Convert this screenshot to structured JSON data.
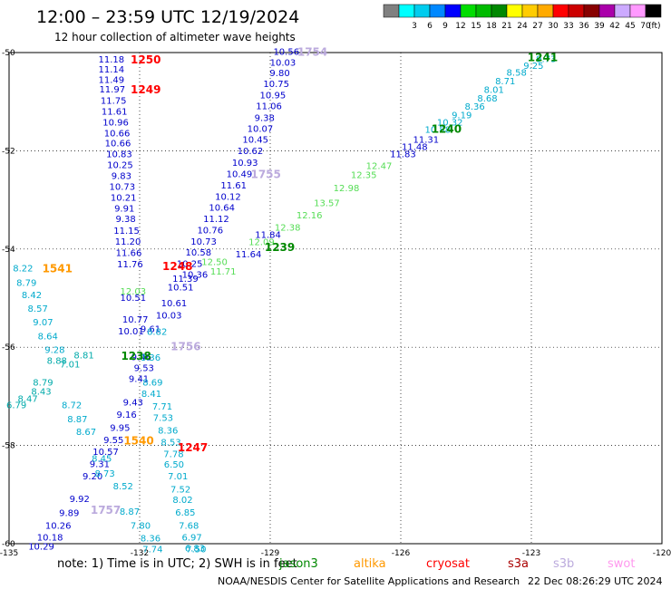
{
  "header": {
    "title": "12:00 – 23:59 UTC 12/19/2024",
    "subtitle": "12 hour collection of altimeter wave heights"
  },
  "colorbar": {
    "unit": "(ft)",
    "bins": [
      {
        "label": "",
        "color": "#808080"
      },
      {
        "label": "3",
        "color": "#00ffff"
      },
      {
        "label": "6",
        "color": "#00ccee"
      },
      {
        "label": "9",
        "color": "#0088ff"
      },
      {
        "label": "12",
        "color": "#0000ff"
      },
      {
        "label": "15",
        "color": "#00dd00"
      },
      {
        "label": "18",
        "color": "#00bb00"
      },
      {
        "label": "21",
        "color": "#008800"
      },
      {
        "label": "24",
        "color": "#ffff00"
      },
      {
        "label": "27",
        "color": "#ffcc00"
      },
      {
        "label": "30",
        "color": "#ffaa00"
      },
      {
        "label": "33",
        "color": "#ff0000"
      },
      {
        "label": "36",
        "color": "#cc0000"
      },
      {
        "label": "39",
        "color": "#880000"
      },
      {
        "label": "42",
        "color": "#aa00aa"
      },
      {
        "label": "45",
        "color": "#ccaaff"
      },
      {
        "label": "70",
        "color": "#ff99ff"
      },
      {
        "label": "",
        "color": "#000000"
      }
    ]
  },
  "footer": {
    "note": "note:  1) Time is in UTC; 2) SWH is in feet",
    "satellites": [
      {
        "name": "jason3",
        "color": "#008800"
      },
      {
        "name": "altika",
        "color": "#ff9900"
      },
      {
        "name": "cryosat",
        "color": "#ff0000"
      },
      {
        "name": "s3a",
        "color": "#aa0000"
      },
      {
        "name": "s3b",
        "color": "#bbaadd"
      },
      {
        "name": "swot",
        "color": "#ff99ee"
      }
    ],
    "credit": "NOAA/NESDIS Center for Satellite Applications and Research",
    "timestamp": "22 Dec 08:26:29 UTC 2024"
  },
  "chart_data": {
    "type": "scatter",
    "x_ticks": [
      "-135",
      "-132",
      "-129",
      "-126",
      "-123",
      "-120"
    ],
    "y_ticks": [
      "-50",
      "-52",
      "-54",
      "-56",
      "-58",
      "-60"
    ],
    "xlim": [
      -135,
      -120
    ],
    "ylim": [
      -60,
      -50
    ],
    "grid": true,
    "colors": {
      "dark": "#0000cc",
      "cyan": "#00aacc",
      "green": "#55dd55",
      "teal": "#00aaaa"
    },
    "time_labels": [
      {
        "text": "1250",
        "lon": -131.86,
        "lat": -50.13,
        "color": "#ff0000"
      },
      {
        "text": "1249",
        "lon": -131.86,
        "lat": -50.74,
        "color": "#ff0000"
      },
      {
        "text": "1754",
        "lon": -128.03,
        "lat": -49.97,
        "color": "#bbaadd"
      },
      {
        "text": "1241",
        "lon": -122.74,
        "lat": -50.08,
        "color": "#008800"
      },
      {
        "text": "1240",
        "lon": -124.95,
        "lat": -51.54,
        "color": "#008800"
      },
      {
        "text": "1755",
        "lon": -129.1,
        "lat": -52.46,
        "color": "#bbaadd"
      },
      {
        "text": "1239",
        "lon": -128.78,
        "lat": -53.95,
        "color": "#008800"
      },
      {
        "text": "1248",
        "lon": -131.13,
        "lat": -54.34,
        "color": "#ff0000"
      },
      {
        "text": "1541",
        "lon": -133.89,
        "lat": -54.38,
        "color": "#ff9900"
      },
      {
        "text": "1756",
        "lon": -130.94,
        "lat": -55.97,
        "color": "#bbaadd"
      },
      {
        "text": "1238",
        "lon": -132.08,
        "lat": -56.16,
        "color": "#008800"
      },
      {
        "text": "1540",
        "lon": -132.02,
        "lat": -57.89,
        "color": "#ff9900"
      },
      {
        "text": "1247",
        "lon": -130.78,
        "lat": -58.03,
        "color": "#ff0000"
      },
      {
        "text": "1757",
        "lon": -132.78,
        "lat": -59.3,
        "color": "#bbaadd"
      }
    ],
    "tracks": [
      {
        "name": "track-1250-1247",
        "color": "dark",
        "points": [
          {
            "v": "11.18",
            "lon": -132.65,
            "lat": -50.13
          },
          {
            "v": "11.14",
            "lon": -132.65,
            "lat": -50.33
          },
          {
            "v": "11.49",
            "lon": -132.65,
            "lat": -50.54
          },
          {
            "v": "11.97",
            "lon": -132.63,
            "lat": -50.74
          },
          {
            "v": "11.75",
            "lon": -132.6,
            "lat": -50.97
          },
          {
            "v": "11.61",
            "lon": -132.58,
            "lat": -51.19
          },
          {
            "v": "10.96",
            "lon": -132.55,
            "lat": -51.41
          },
          {
            "v": "10.66",
            "lon": -132.52,
            "lat": -51.63
          },
          {
            "v": "10.66",
            "lon": -132.5,
            "lat": -51.84
          },
          {
            "v": "10.83",
            "lon": -132.47,
            "lat": -52.06
          },
          {
            "v": "10.25",
            "lon": -132.45,
            "lat": -52.28
          },
          {
            "v": "9.83",
            "lon": -132.42,
            "lat": -52.5
          },
          {
            "v": "10.73",
            "lon": -132.4,
            "lat": -52.72
          },
          {
            "v": "10.21",
            "lon": -132.37,
            "lat": -52.94
          },
          {
            "v": "9.91",
            "lon": -132.35,
            "lat": -53.16
          },
          {
            "v": "9.38",
            "lon": -132.32,
            "lat": -53.38
          },
          {
            "v": "11.15",
            "lon": -132.3,
            "lat": -53.62
          },
          {
            "v": "11.20",
            "lon": -132.27,
            "lat": -53.84
          },
          {
            "v": "11.66",
            "lon": -132.25,
            "lat": -54.07
          },
          {
            "v": "11.76",
            "lon": -132.22,
            "lat": -54.3
          },
          {
            "v": "10.51",
            "lon": -132.15,
            "lat": -54.98
          },
          {
            "v": "10.77",
            "lon": -132.1,
            "lat": -55.42
          },
          {
            "v": "10.01",
            "lon": -132.2,
            "lat": -55.66
          },
          {
            "v": "9.53",
            "lon": -131.9,
            "lat": -56.41
          },
          {
            "v": "9.41",
            "lon": -132.02,
            "lat": -56.63
          },
          {
            "v": "9.43",
            "lon": -132.15,
            "lat": -57.11
          },
          {
            "v": "9.16",
            "lon": -132.3,
            "lat": -57.36
          },
          {
            "v": "9.95",
            "lon": -132.45,
            "lat": -57.63
          },
          {
            "v": "9.55",
            "lon": -132.6,
            "lat": -57.88
          },
          {
            "v": "10.57",
            "lon": -132.78,
            "lat": -58.12
          },
          {
            "v": "9.31",
            "lon": -132.92,
            "lat": -58.37
          },
          {
            "v": "9.20",
            "lon": -133.08,
            "lat": -58.62
          },
          {
            "v": "9.92",
            "lon": -133.38,
            "lat": -59.08
          },
          {
            "v": "9.89",
            "lon": -133.62,
            "lat": -59.36
          },
          {
            "v": "10.26",
            "lon": -133.87,
            "lat": -59.62
          },
          {
            "v": "10.18",
            "lon": -134.06,
            "lat": -59.86
          },
          {
            "v": "10.29",
            "lon": -134.26,
            "lat": -60.05
          }
        ]
      },
      {
        "name": "track-1754-1756",
        "color": "dark",
        "points": [
          {
            "v": "10.56",
            "lon": -128.63,
            "lat": -49.97
          },
          {
            "v": "10.03",
            "lon": -128.71,
            "lat": -50.19
          },
          {
            "v": "9.80",
            "lon": -128.78,
            "lat": -50.41
          },
          {
            "v": "10.75",
            "lon": -128.86,
            "lat": -50.63
          },
          {
            "v": "10.95",
            "lon": -128.94,
            "lat": -50.86
          },
          {
            "v": "11.06",
            "lon": -129.03,
            "lat": -51.08
          },
          {
            "v": "9.38",
            "lon": -129.13,
            "lat": -51.32
          },
          {
            "v": "10.07",
            "lon": -129.23,
            "lat": -51.54
          },
          {
            "v": "10.45",
            "lon": -129.34,
            "lat": -51.76
          },
          {
            "v": "10.62",
            "lon": -129.46,
            "lat": -51.99
          },
          {
            "v": "10.93",
            "lon": -129.58,
            "lat": -52.23
          },
          {
            "v": "10.49",
            "lon": -129.71,
            "lat": -52.46
          },
          {
            "v": "11.61",
            "lon": -129.84,
            "lat": -52.69
          },
          {
            "v": "10.12",
            "lon": -129.97,
            "lat": -52.92
          },
          {
            "v": "10.64",
            "lon": -130.11,
            "lat": -53.15
          },
          {
            "v": "11.12",
            "lon": -130.24,
            "lat": -53.38
          },
          {
            "v": "10.76",
            "lon": -130.38,
            "lat": -53.61
          },
          {
            "v": "10.73",
            "lon": -130.53,
            "lat": -53.84
          },
          {
            "v": "10.58",
            "lon": -130.65,
            "lat": -54.06
          },
          {
            "v": "10.25",
            "lon": -130.85,
            "lat": -54.29
          },
          {
            "v": "10.36",
            "lon": -130.73,
            "lat": -54.51
          },
          {
            "v": "11.39",
            "lon": -130.95,
            "lat": -54.59
          },
          {
            "v": "10.51",
            "lon": -131.06,
            "lat": -54.77
          },
          {
            "v": "10.61",
            "lon": -131.21,
            "lat": -55.09
          },
          {
            "v": "10.03",
            "lon": -131.33,
            "lat": -55.34
          },
          {
            "v": "9.61",
            "lon": -131.75,
            "lat": -55.62
          },
          {
            "v": "9.46",
            "lon": -131.96,
            "lat": -56.19
          }
        ]
      },
      {
        "name": "track-1541-1757",
        "color": "cyan",
        "points": [
          {
            "v": "8.22",
            "lon": -134.68,
            "lat": -54.38
          },
          {
            "v": "8.79",
            "lon": -134.6,
            "lat": -54.68
          },
          {
            "v": "8.42",
            "lon": -134.48,
            "lat": -54.93
          },
          {
            "v": "8.57",
            "lon": -134.34,
            "lat": -55.2
          },
          {
            "v": "9.07",
            "lon": -134.22,
            "lat": -55.48
          },
          {
            "v": "8.64",
            "lon": -134.11,
            "lat": -55.77
          },
          {
            "v": "9.28",
            "lon": -133.95,
            "lat": -56.04
          },
          {
            "v": "8.72",
            "lon": -133.56,
            "lat": -57.17
          },
          {
            "v": "8.87",
            "lon": -133.43,
            "lat": -57.45
          },
          {
            "v": "8.67",
            "lon": -133.23,
            "lat": -57.71
          },
          {
            "v": "8.45",
            "lon": -132.87,
            "lat": -58.26
          },
          {
            "v": "8.73",
            "lon": -132.8,
            "lat": -58.56
          },
          {
            "v": "8.52",
            "lon": -132.38,
            "lat": -58.82
          },
          {
            "v": "8.87",
            "lon": -132.23,
            "lat": -59.34
          },
          {
            "v": "7.80",
            "lon": -131.98,
            "lat": -59.62
          },
          {
            "v": "8.36",
            "lon": -131.75,
            "lat": -59.88
          },
          {
            "v": "7.74",
            "lon": -131.7,
            "lat": -60.1
          }
        ]
      },
      {
        "name": "track-1756-1540",
        "color": "cyan",
        "points": [
          {
            "v": "8.82",
            "lon": -131.6,
            "lat": -55.67
          },
          {
            "v": "8.36",
            "lon": -131.75,
            "lat": -56.2
          },
          {
            "v": "8.69",
            "lon": -131.7,
            "lat": -56.71
          },
          {
            "v": "8.41",
            "lon": -131.73,
            "lat": -56.94
          },
          {
            "v": "7.71",
            "lon": -131.48,
            "lat": -57.2
          },
          {
            "v": "7.53",
            "lon": -131.46,
            "lat": -57.43
          },
          {
            "v": "8.36",
            "lon": -131.35,
            "lat": -57.68
          },
          {
            "v": "8.53",
            "lon": -131.28,
            "lat": -57.92
          },
          {
            "v": "7.78",
            "lon": -131.22,
            "lat": -58.16
          },
          {
            "v": "6.50",
            "lon": -131.21,
            "lat": -58.38
          },
          {
            "v": "7.01",
            "lon": -131.12,
            "lat": -58.62
          },
          {
            "v": "7.52",
            "lon": -131.06,
            "lat": -58.88
          },
          {
            "v": "8.02",
            "lon": -131.01,
            "lat": -59.1
          },
          {
            "v": "6.85",
            "lon": -130.95,
            "lat": -59.35
          },
          {
            "v": "7.68",
            "lon": -130.87,
            "lat": -59.62
          },
          {
            "v": "6.97",
            "lon": -130.8,
            "lat": -59.86
          },
          {
            "v": "6.83",
            "lon": -130.73,
            "lat": -60.08
          },
          {
            "v": "7.50",
            "lon": -130.7,
            "lat": -60.1
          }
        ]
      },
      {
        "name": "track-1238-west",
        "color": "teal",
        "points": [
          {
            "v": "8.88",
            "lon": -133.9,
            "lat": -56.26
          },
          {
            "v": "8.81",
            "lon": -133.28,
            "lat": -56.15
          },
          {
            "v": "7.01",
            "lon": -133.6,
            "lat": -56.34
          },
          {
            "v": "8.79",
            "lon": -134.22,
            "lat": -56.71
          },
          {
            "v": "8.47",
            "lon": -134.57,
            "lat": -57.04
          },
          {
            "v": "8.43",
            "lon": -134.26,
            "lat": -56.89
          },
          {
            "v": "6.79",
            "lon": -134.83,
            "lat": -57.17
          }
        ]
      },
      {
        "name": "track-1239-1241",
        "color": "cyan",
        "points": [
          {
            "v": "9.73",
            "lon": -122.66,
            "lat": -50.12
          },
          {
            "v": "9.25",
            "lon": -122.95,
            "lat": -50.26
          },
          {
            "v": "8.58",
            "lon": -123.34,
            "lat": -50.4
          },
          {
            "v": "8.71",
            "lon": -123.6,
            "lat": -50.57
          },
          {
            "v": "8.01",
            "lon": -123.86,
            "lat": -50.75
          },
          {
            "v": "8.68",
            "lon": -124.01,
            "lat": -50.92
          },
          {
            "v": "8.36",
            "lon": -124.3,
            "lat": -51.09
          },
          {
            "v": "9.19",
            "lon": -124.6,
            "lat": -51.26
          },
          {
            "v": "10.32",
            "lon": -124.87,
            "lat": -51.41
          },
          {
            "v": "10.88",
            "lon": -125.15,
            "lat": -51.56
          }
        ]
      },
      {
        "name": "track-1240-dark",
        "color": "dark",
        "points": [
          {
            "v": "11.31",
            "lon": -125.42,
            "lat": -51.76
          },
          {
            "v": "11.48",
            "lon": -125.68,
            "lat": -51.91
          },
          {
            "v": "11.83",
            "lon": -125.95,
            "lat": -52.06
          },
          {
            "v": "11.84",
            "lon": -129.05,
            "lat": -53.7
          },
          {
            "v": "11.64",
            "lon": -129.5,
            "lat": -54.1
          }
        ]
      },
      {
        "name": "track-1240-green",
        "color": "green",
        "points": [
          {
            "v": "12.47",
            "lon": -126.5,
            "lat": -52.3
          },
          {
            "v": "12.35",
            "lon": -126.85,
            "lat": -52.48
          },
          {
            "v": "12.98",
            "lon": -127.25,
            "lat": -52.75
          },
          {
            "v": "13.57",
            "lon": -127.7,
            "lat": -53.05
          },
          {
            "v": "12.16",
            "lon": -128.1,
            "lat": -53.3
          },
          {
            "v": "12.38",
            "lon": -128.6,
            "lat": -53.55
          },
          {
            "v": "12.09",
            "lon": -129.2,
            "lat": -53.85
          },
          {
            "v": "12.50",
            "lon": -130.28,
            "lat": -54.25
          },
          {
            "v": "11.71",
            "lon": -130.08,
            "lat": -54.45
          },
          {
            "v": "12.03",
            "lon": -132.15,
            "lat": -54.85
          }
        ]
      }
    ]
  }
}
